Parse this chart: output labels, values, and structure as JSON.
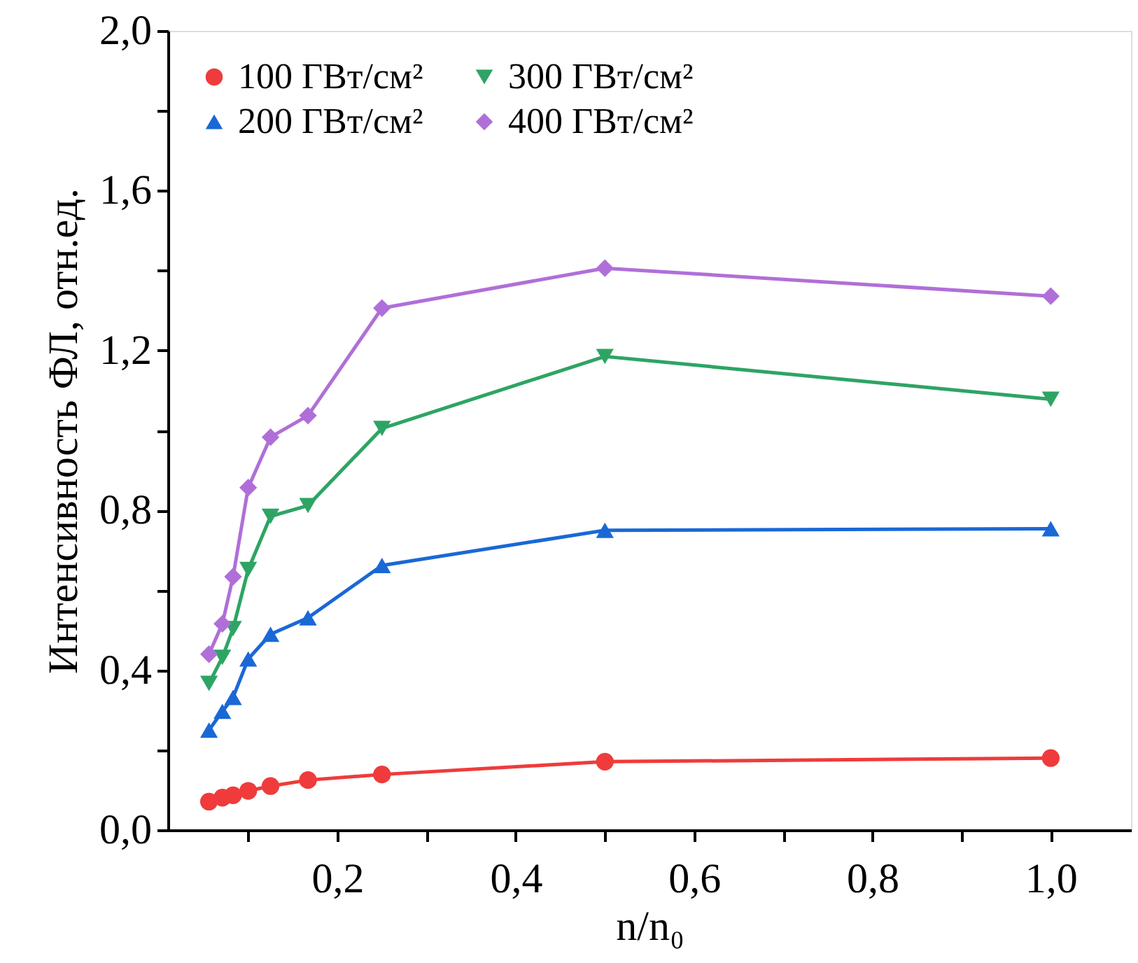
{
  "chart_data": {
    "type": "line",
    "xlabel": "n/n₀",
    "ylabel": "Интенсивность ФЛ, отн.ед.",
    "x": [
      0.056,
      0.071,
      0.083,
      0.1,
      0.125,
      0.167,
      0.25,
      0.5,
      1.0
    ],
    "series": [
      {
        "name": "100 ГВт/см²",
        "color": "#ef3b3b",
        "marker": "circle",
        "values": [
          0.071,
          0.081,
          0.087,
          0.098,
          0.11,
          0.125,
          0.139,
          0.171,
          0.18
        ]
      },
      {
        "name": "200 ГВт/см²",
        "color": "#1a68d6",
        "marker": "triangle",
        "values": [
          0.25,
          0.297,
          0.332,
          0.428,
          0.49,
          0.531,
          0.662,
          0.75,
          0.754
        ]
      },
      {
        "name": "300 ГВт/см²",
        "color": "#2ea464",
        "marker": "triangle-down",
        "values": [
          0.367,
          0.432,
          0.504,
          0.652,
          0.785,
          0.812,
          1.005,
          1.185,
          1.078
        ]
      },
      {
        "name": "400 ГВт/см²",
        "color": "#b06fd8",
        "marker": "diamond",
        "values": [
          0.44,
          0.516,
          0.634,
          0.857,
          0.983,
          1.037,
          1.306,
          1.406,
          1.336
        ]
      }
    ],
    "xlim": [
      0.01,
      1.09
    ],
    "xticks": [
      {
        "value": 0.1,
        "label": null
      },
      {
        "value": 0.2,
        "label": "0,2"
      },
      {
        "value": 0.3,
        "label": null
      },
      {
        "value": 0.4,
        "label": "0,4"
      },
      {
        "value": 0.5,
        "label": null
      },
      {
        "value": 0.6,
        "label": "0,6"
      },
      {
        "value": 0.7,
        "label": null
      },
      {
        "value": 0.8,
        "label": "0,8"
      },
      {
        "value": 0.9,
        "label": null
      },
      {
        "value": 1.0,
        "label": "1,0"
      }
    ],
    "ylim": [
      0,
      2
    ],
    "yticks": [
      {
        "value": 0,
        "label": "0,0"
      },
      {
        "value": 0.2,
        "label": null
      },
      {
        "value": 0.4,
        "label": "0,4"
      },
      {
        "value": 0.6,
        "label": null
      },
      {
        "value": 0.8,
        "label": "0,8"
      },
      {
        "value": 1.0,
        "label": null
      },
      {
        "value": 1.2,
        "label": "1,2"
      },
      {
        "value": 1.4,
        "label": null
      },
      {
        "value": 1.6,
        "label": "1,6"
      },
      {
        "value": 1.8,
        "label": null
      },
      {
        "value": 2.0,
        "label": "2,0"
      }
    ],
    "legend": "top left",
    "grid": false,
    "line_style": "solid"
  }
}
